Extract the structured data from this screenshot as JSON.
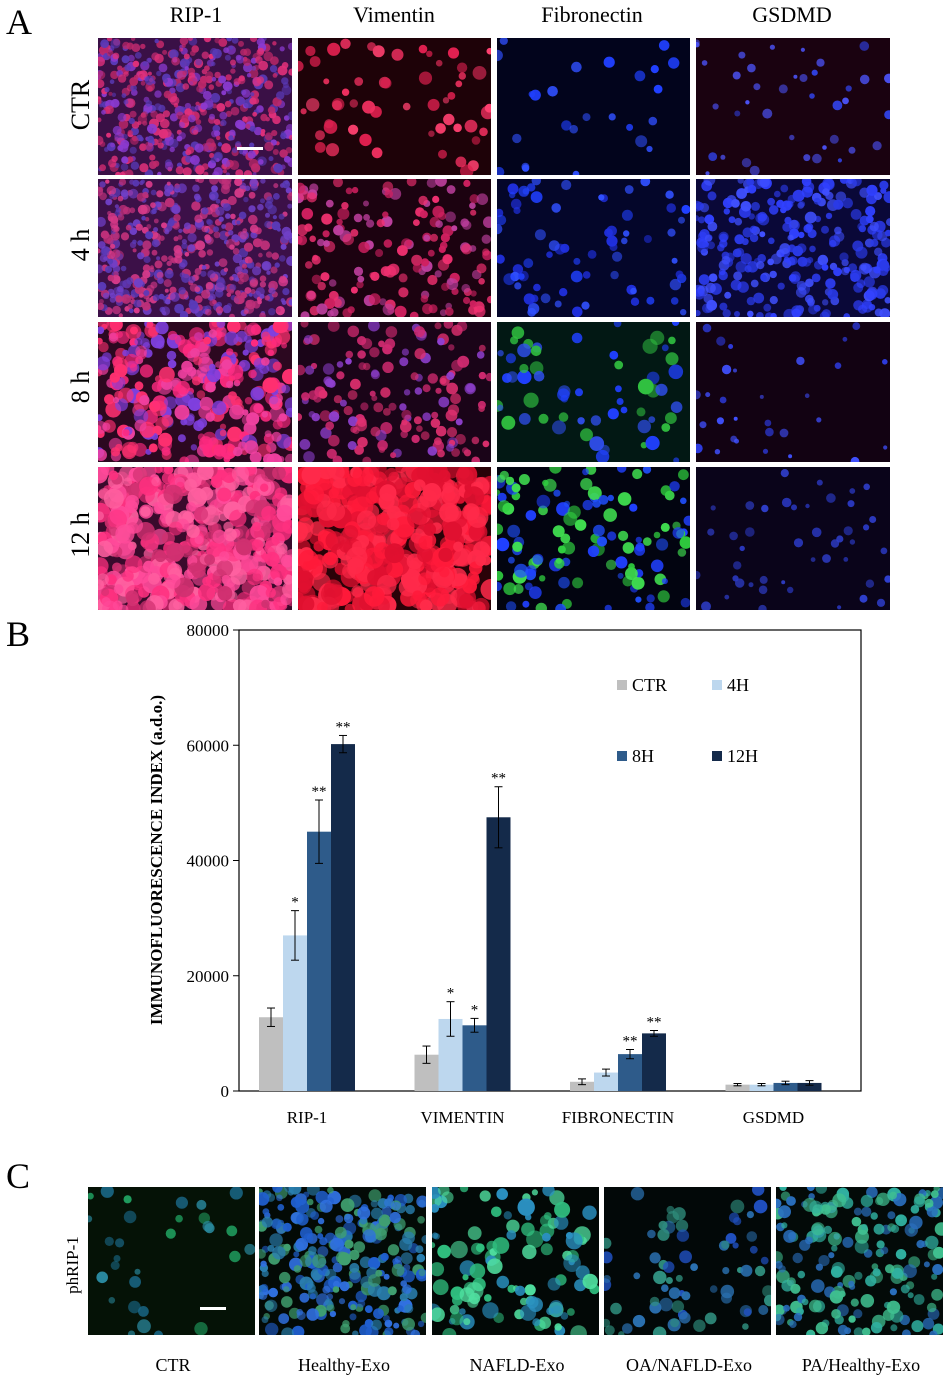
{
  "panels": {
    "a": "A",
    "b": "B",
    "c": "C"
  },
  "panel_a": {
    "columns": [
      "RIP-1",
      "Vimentin",
      "Fibronectin",
      "GSDMD"
    ],
    "rows": [
      "CTR",
      "4 h",
      "8 h",
      "12 h"
    ]
  },
  "panel_c": {
    "row_label": "phRIP-1",
    "conditions": [
      "CTR",
      "Healthy-Exo",
      "NAFLD-Exo",
      "OA/NAFLD-Exo",
      "PA/Healthy-Exo"
    ]
  },
  "colors": {
    "CTR": "#bfbfbf",
    "4H": "#bdd7ee",
    "8H": "#2e5b8a",
    "12H": "#142a4a"
  },
  "chart_data": {
    "type": "bar",
    "ylabel": "IMMUNOFLUORESCENCE INDEX (a.d.o.)",
    "xlabel": "",
    "ylim": [
      0,
      80000
    ],
    "yticks": [
      "0",
      "20000",
      "40000",
      "60000",
      "80000"
    ],
    "categories": [
      "RIP-1",
      "VIMENTIN",
      "FIBRONECTIN",
      "GSDMD"
    ],
    "legend": [
      "CTR",
      "4H",
      "8H",
      "12H"
    ],
    "legend_position": "top-right",
    "series": [
      {
        "name": "CTR",
        "values": [
          12800,
          6300,
          1600,
          1100
        ],
        "errors": [
          1600,
          1500,
          500,
          200
        ],
        "sig": [
          "",
          "",
          "",
          ""
        ]
      },
      {
        "name": "4H",
        "values": [
          27000,
          12500,
          3200,
          1100
        ],
        "errors": [
          4300,
          3000,
          600,
          200
        ],
        "sig": [
          "*",
          "*",
          "",
          ""
        ]
      },
      {
        "name": "8H",
        "values": [
          45000,
          11400,
          6400,
          1400
        ],
        "errors": [
          5500,
          1200,
          800,
          300
        ],
        "sig": [
          "**",
          "*",
          "**",
          ""
        ]
      },
      {
        "name": "12H",
        "values": [
          60200,
          47500,
          10000,
          1400
        ],
        "errors": [
          1500,
          5300,
          500,
          400
        ],
        "sig": [
          "**",
          "**",
          "**",
          ""
        ]
      }
    ]
  }
}
